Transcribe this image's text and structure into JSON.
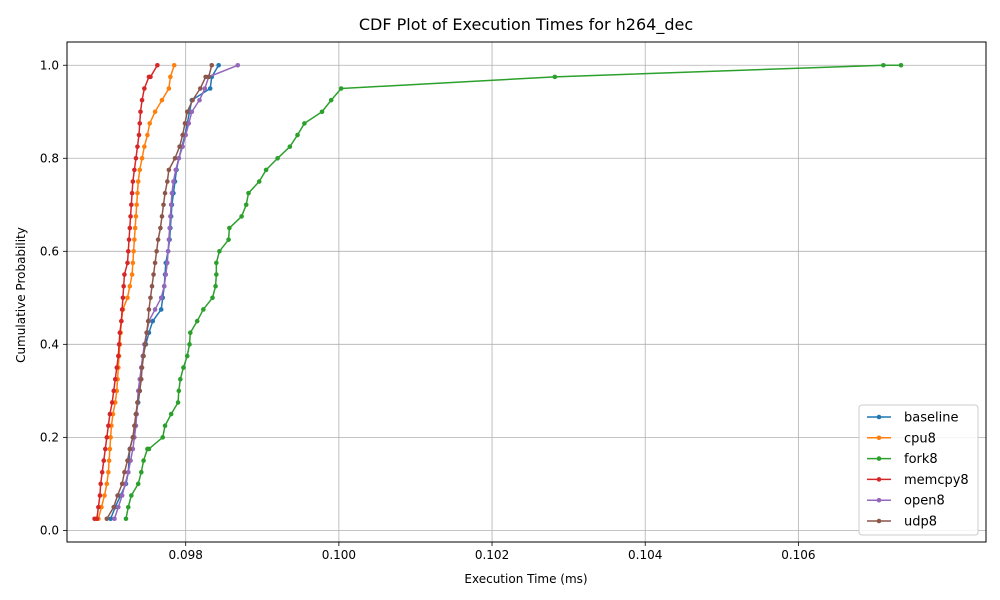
{
  "chart_data": {
    "type": "line",
    "title": "CDF Plot of Execution Times for h264_dec",
    "xlabel": "Execution Time (ms)",
    "ylabel": "Cumulative Probability",
    "xlim": [
      0.09645,
      0.10845
    ],
    "ylim": [
      -0.025,
      1.05
    ],
    "xticks": [
      0.098,
      0.1,
      0.102,
      0.104,
      0.106
    ],
    "xtick_labels": [
      "0.098",
      "0.100",
      "0.102",
      "0.104",
      "0.106"
    ],
    "yticks": [
      0.0,
      0.2,
      0.4,
      0.6,
      0.8,
      1.0
    ],
    "ytick_labels": [
      "0.0",
      "0.2",
      "0.4",
      "0.6",
      "0.8",
      "1.0"
    ],
    "grid": true,
    "legend_position": "lower-right",
    "series": [
      {
        "name": "baseline",
        "color": "#1f77b4",
        "x": [
          0.09702,
          0.09708,
          0.09715,
          0.09722,
          0.09725,
          0.09726,
          0.09727,
          0.09731,
          0.09734,
          0.09735,
          0.09738,
          0.0974,
          0.09741,
          0.09742,
          0.09744,
          0.09748,
          0.09752,
          0.09757,
          0.09768,
          0.0977,
          0.09772,
          0.09773,
          0.09774,
          0.09777,
          0.09779,
          0.0978,
          0.09781,
          0.09782,
          0.09784,
          0.09786,
          0.09788,
          0.09791,
          0.09795,
          0.09799,
          0.09802,
          0.09805,
          0.09808,
          0.09832,
          0.09834,
          0.09843
        ],
        "y": [
          0.025,
          0.05,
          0.075,
          0.1,
          0.125,
          0.15,
          0.175,
          0.2,
          0.225,
          0.25,
          0.275,
          0.3,
          0.325,
          0.35,
          0.375,
          0.4,
          0.425,
          0.45,
          0.475,
          0.5,
          0.525,
          0.55,
          0.575,
          0.6,
          0.625,
          0.65,
          0.675,
          0.7,
          0.725,
          0.75,
          0.775,
          0.8,
          0.825,
          0.85,
          0.875,
          0.9,
          0.925,
          0.95,
          0.975,
          1.0
        ]
      },
      {
        "name": "cpu8",
        "color": "#ff7f0e",
        "x": [
          0.09686,
          0.0969,
          0.09694,
          0.09697,
          0.09699,
          0.097,
          0.09701,
          0.09702,
          0.09703,
          0.09705,
          0.09708,
          0.0971,
          0.09711,
          0.09712,
          0.09713,
          0.09714,
          0.09715,
          0.09716,
          0.09718,
          0.09724,
          0.09727,
          0.0973,
          0.09731,
          0.09732,
          0.09733,
          0.09734,
          0.09735,
          0.09736,
          0.09737,
          0.09738,
          0.0974,
          0.09743,
          0.09746,
          0.0975,
          0.09753,
          0.0976,
          0.09769,
          0.09778,
          0.0978,
          0.09785
        ],
        "y": [
          0.025,
          0.05,
          0.075,
          0.1,
          0.125,
          0.15,
          0.175,
          0.2,
          0.225,
          0.25,
          0.275,
          0.3,
          0.325,
          0.35,
          0.375,
          0.4,
          0.425,
          0.45,
          0.475,
          0.5,
          0.525,
          0.55,
          0.575,
          0.6,
          0.625,
          0.65,
          0.675,
          0.7,
          0.725,
          0.75,
          0.775,
          0.8,
          0.825,
          0.85,
          0.875,
          0.9,
          0.925,
          0.95,
          0.975,
          1.0
        ]
      },
      {
        "name": "fork8",
        "color": "#2ca02c",
        "x": [
          0.09722,
          0.09725,
          0.09729,
          0.09738,
          0.09742,
          0.09745,
          0.0975,
          0.09752,
          0.0977,
          0.09773,
          0.09781,
          0.0979,
          0.09791,
          0.09793,
          0.09797,
          0.09802,
          0.09805,
          0.09806,
          0.09815,
          0.09823,
          0.09835,
          0.09839,
          0.0984,
          0.0984,
          0.09844,
          0.09856,
          0.09857,
          0.09873,
          0.09879,
          0.09882,
          0.09896,
          0.09905,
          0.0992,
          0.09936,
          0.09946,
          0.09955,
          0.09978,
          0.0999,
          0.10003,
          0.10282,
          0.10711,
          0.10734
        ],
        "y": [
          0.025,
          0.05,
          0.075,
          0.1,
          0.125,
          0.15,
          0.175,
          0.175,
          0.2,
          0.225,
          0.25,
          0.275,
          0.3,
          0.325,
          0.35,
          0.375,
          0.4,
          0.425,
          0.45,
          0.475,
          0.5,
          0.525,
          0.55,
          0.575,
          0.6,
          0.625,
          0.65,
          0.675,
          0.7,
          0.725,
          0.75,
          0.775,
          0.8,
          0.825,
          0.85,
          0.875,
          0.9,
          0.925,
          0.95,
          0.975,
          1.0,
          1.0
        ]
      },
      {
        "name": "memcpy8",
        "color": "#d62728",
        "x": [
          0.09681,
          0.09684,
          0.09686,
          0.09688,
          0.09689,
          0.09691,
          0.09693,
          0.09695,
          0.09697,
          0.09699,
          0.09701,
          0.09704,
          0.09706,
          0.09708,
          0.0971,
          0.09712,
          0.09713,
          0.09714,
          0.09716,
          0.09717,
          0.09718,
          0.09719,
          0.0972,
          0.09724,
          0.09725,
          0.09726,
          0.09727,
          0.09728,
          0.09729,
          0.0973,
          0.09731,
          0.09733,
          0.09735,
          0.09737,
          0.09739,
          0.0974,
          0.09741,
          0.09743,
          0.09746,
          0.09752,
          0.09754,
          0.09763
        ],
        "y": [
          0.025,
          0.025,
          0.05,
          0.075,
          0.1,
          0.125,
          0.15,
          0.175,
          0.2,
          0.225,
          0.25,
          0.275,
          0.3,
          0.325,
          0.35,
          0.375,
          0.4,
          0.425,
          0.45,
          0.475,
          0.5,
          0.525,
          0.55,
          0.575,
          0.6,
          0.625,
          0.65,
          0.675,
          0.7,
          0.725,
          0.75,
          0.775,
          0.8,
          0.825,
          0.85,
          0.875,
          0.9,
          0.925,
          0.95,
          0.975,
          0.975,
          1.0
        ]
      },
      {
        "name": "open8",
        "color": "#9467bd",
        "x": [
          0.09707,
          0.09712,
          0.09717,
          0.09721,
          0.09725,
          0.09728,
          0.09731,
          0.09733,
          0.09735,
          0.09736,
          0.09737,
          0.09738,
          0.0974,
          0.09742,
          0.09744,
          0.09746,
          0.09749,
          0.09752,
          0.0976,
          0.09768,
          0.09772,
          0.09774,
          0.09776,
          0.09777,
          0.09778,
          0.09779,
          0.0978,
          0.09781,
          0.09782,
          0.09784,
          0.09787,
          0.09791,
          0.09796,
          0.098,
          0.09804,
          0.09808,
          0.09818,
          0.09825,
          0.0983,
          0.09868
        ],
        "y": [
          0.025,
          0.05,
          0.075,
          0.1,
          0.125,
          0.15,
          0.175,
          0.2,
          0.225,
          0.25,
          0.275,
          0.3,
          0.325,
          0.35,
          0.375,
          0.4,
          0.425,
          0.45,
          0.475,
          0.5,
          0.525,
          0.55,
          0.575,
          0.6,
          0.625,
          0.65,
          0.675,
          0.7,
          0.725,
          0.75,
          0.775,
          0.8,
          0.825,
          0.85,
          0.875,
          0.9,
          0.925,
          0.95,
          0.975,
          1.0
        ]
      },
      {
        "name": "udp8",
        "color": "#8c564b",
        "x": [
          0.09697,
          0.09706,
          0.09711,
          0.09717,
          0.0972,
          0.09724,
          0.09727,
          0.09731,
          0.09733,
          0.09735,
          0.09737,
          0.0974,
          0.09742,
          0.09743,
          0.09745,
          0.09747,
          0.09749,
          0.09751,
          0.09752,
          0.09754,
          0.09756,
          0.09758,
          0.0976,
          0.09762,
          0.09764,
          0.09767,
          0.09769,
          0.09771,
          0.09773,
          0.09776,
          0.09778,
          0.09786,
          0.09792,
          0.09796,
          0.09799,
          0.09802,
          0.09809,
          0.09819,
          0.09826,
          0.0983,
          0.09834
        ],
        "y": [
          0.025,
          0.05,
          0.075,
          0.1,
          0.125,
          0.15,
          0.175,
          0.2,
          0.225,
          0.25,
          0.275,
          0.3,
          0.325,
          0.35,
          0.375,
          0.4,
          0.425,
          0.45,
          0.475,
          0.5,
          0.525,
          0.55,
          0.575,
          0.6,
          0.625,
          0.65,
          0.675,
          0.7,
          0.725,
          0.75,
          0.775,
          0.8,
          0.825,
          0.85,
          0.875,
          0.9,
          0.925,
          0.95,
          0.975,
          0.975,
          1.0
        ]
      }
    ]
  }
}
